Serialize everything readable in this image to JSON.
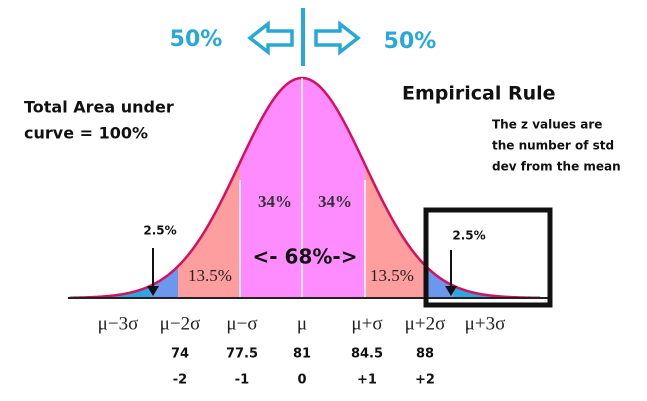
{
  "top": {
    "left_percent": "50%",
    "right_percent": "50%"
  },
  "title": "Empirical Rule",
  "note_left": [
    "Total Area under",
    "curve = 100%"
  ],
  "note_right": [
    "The z values are",
    "the number of std",
    "dev from the mean"
  ],
  "regions": {
    "inner_left": "34%",
    "inner_right": "34%",
    "middle_left": "13.5%",
    "middle_right": "13.5%",
    "tail_left": "2.5%",
    "tail_right": "2.5%",
    "center": "<- 68%->"
  },
  "axis_labels": [
    "μ−3σ",
    "μ−2σ",
    "μ−σ",
    "μ",
    "μ+σ",
    "μ+2σ",
    "μ+3σ"
  ],
  "values": [
    "74",
    "77.5",
    "81",
    "84.5",
    "88"
  ],
  "z_values": [
    "-2",
    "-1",
    "0",
    "+1",
    "+2"
  ]
}
